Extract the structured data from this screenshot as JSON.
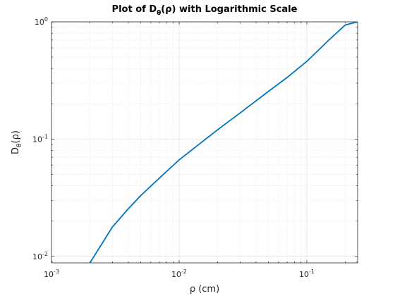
{
  "chart_data": {
    "type": "line",
    "title": {
      "prefix": "Plot of D",
      "subscript": "θ",
      "suffix": "(ρ) with Logarithmic Scale"
    },
    "xlabel": "ρ (cm)",
    "ylabel": {
      "base": "D",
      "subscript": "θ",
      "suffix": "(ρ)"
    },
    "xscale": "log",
    "yscale": "log",
    "xlim": [
      0.001,
      0.25
    ],
    "ylim": [
      0.0088,
      1.0
    ],
    "x_ticks": [
      {
        "value": 0.001,
        "base": "10",
        "exp": "-3"
      },
      {
        "value": 0.01,
        "base": "10",
        "exp": "-2"
      },
      {
        "value": 0.1,
        "base": "10",
        "exp": "-1"
      }
    ],
    "y_ticks": [
      {
        "value": 0.01,
        "base": "10",
        "exp": "-2"
      },
      {
        "value": 0.1,
        "base": "10",
        "exp": "-1"
      },
      {
        "value": 1,
        "base": "10",
        "exp": "0"
      }
    ],
    "grid": true,
    "minor_grid": true,
    "line_color": "#0072BD",
    "series": [
      {
        "x": [
          0.002,
          0.003,
          0.004,
          0.005,
          0.007,
          0.01,
          0.015,
          0.02,
          0.03,
          0.05,
          0.07,
          0.1,
          0.15,
          0.2,
          0.25
        ],
        "y": [
          0.0088,
          0.0178,
          0.0255,
          0.033,
          0.0465,
          0.0665,
          0.094,
          0.12,
          0.167,
          0.255,
          0.335,
          0.46,
          0.705,
          0.94,
          1.0
        ]
      }
    ]
  }
}
